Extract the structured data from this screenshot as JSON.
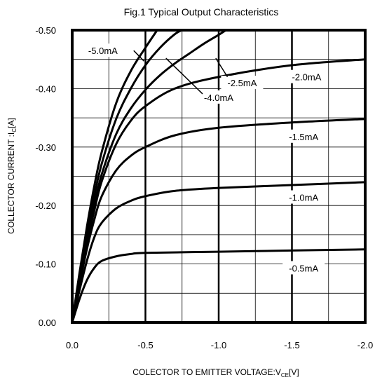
{
  "chart_data": {
    "type": "line",
    "title": "Fig.1 Typical Output Characteristics",
    "xlabel": {
      "main": "COLECTOR TO EMITTER VOLTAGE:V",
      "sub": "CE",
      "tail": "[V]"
    },
    "ylabel": {
      "main": "COLLECTOR CURRENT :I",
      "sub": "C",
      "tail": "[A]"
    },
    "xlim": [
      0,
      -2.0
    ],
    "ylim": [
      0,
      -0.5
    ],
    "x_ticks": [
      "0.0",
      "-0.5",
      "-1.0",
      "-1.5",
      "-2.0"
    ],
    "y_ticks": [
      "0.00",
      "-0.10",
      "-0.20",
      "-0.30",
      "-0.40",
      "-0.50"
    ],
    "grid": true,
    "series": [
      {
        "name": "-0.5mA",
        "x": [
          0,
          -0.05,
          -0.1,
          -0.15,
          -0.2,
          -0.3,
          -0.4,
          -0.5,
          -1.0,
          -1.5,
          -2.0
        ],
        "values": [
          0,
          -0.04,
          -0.072,
          -0.093,
          -0.105,
          -0.113,
          -0.117,
          -0.119,
          -0.121,
          -0.123,
          -0.125
        ]
      },
      {
        "name": "-1.0mA",
        "x": [
          0,
          -0.05,
          -0.1,
          -0.15,
          -0.2,
          -0.3,
          -0.4,
          -0.5,
          -0.7,
          -1.0,
          -1.5,
          -2.0
        ],
        "values": [
          0,
          -0.055,
          -0.105,
          -0.145,
          -0.17,
          -0.195,
          -0.208,
          -0.216,
          -0.225,
          -0.23,
          -0.235,
          -0.24
        ]
      },
      {
        "name": "-1.5mA",
        "x": [
          0,
          -0.05,
          -0.1,
          -0.15,
          -0.2,
          -0.3,
          -0.4,
          -0.5,
          -0.7,
          -1.0,
          -1.5,
          -2.0
        ],
        "values": [
          0,
          -0.065,
          -0.125,
          -0.175,
          -0.215,
          -0.26,
          -0.285,
          -0.3,
          -0.32,
          -0.333,
          -0.342,
          -0.348
        ]
      },
      {
        "name": "-2.0mA",
        "x": [
          0,
          -0.05,
          -0.1,
          -0.15,
          -0.2,
          -0.3,
          -0.4,
          -0.5,
          -0.7,
          -1.0,
          -1.5,
          -2.0
        ],
        "values": [
          0,
          -0.07,
          -0.135,
          -0.19,
          -0.24,
          -0.305,
          -0.345,
          -0.37,
          -0.4,
          -0.42,
          -0.44,
          -0.45
        ]
      },
      {
        "name": "-2.5mA",
        "x": [
          0,
          -0.05,
          -0.1,
          -0.15,
          -0.2,
          -0.3,
          -0.4,
          -0.5,
          -0.6,
          -0.7,
          -0.8,
          -0.9,
          -1.0,
          -1.05
        ],
        "values": [
          0,
          -0.075,
          -0.142,
          -0.2,
          -0.252,
          -0.322,
          -0.366,
          -0.398,
          -0.423,
          -0.443,
          -0.46,
          -0.477,
          -0.492,
          -0.5
        ]
      },
      {
        "name": "-4.0mA",
        "x": [
          0,
          -0.05,
          -0.1,
          -0.15,
          -0.2,
          -0.3,
          -0.4,
          -0.5,
          -0.6,
          -0.7,
          -0.75
        ],
        "values": [
          0,
          -0.08,
          -0.152,
          -0.215,
          -0.27,
          -0.348,
          -0.4,
          -0.44,
          -0.47,
          -0.493,
          -0.5
        ]
      },
      {
        "name": "-5.0mA",
        "x": [
          0,
          -0.05,
          -0.1,
          -0.15,
          -0.2,
          -0.3,
          -0.4,
          -0.5,
          -0.58
        ],
        "values": [
          0,
          -0.085,
          -0.163,
          -0.232,
          -0.29,
          -0.375,
          -0.43,
          -0.47,
          -0.5
        ]
      }
    ],
    "annotations": [
      {
        "label": "-5.0mA",
        "x": -0.21,
        "y": -0.465
      },
      {
        "label": "-4.0mA",
        "x": -1.0,
        "y": -0.385
      },
      {
        "label": "-2.5mA",
        "x": -1.16,
        "y": -0.41
      },
      {
        "label": "-2.0mA",
        "x": -1.6,
        "y": -0.42
      },
      {
        "label": "-1.5mA",
        "x": -1.58,
        "y": -0.318
      },
      {
        "label": "-1.0mA",
        "x": -1.58,
        "y": -0.214
      },
      {
        "label": "-0.5mA",
        "x": -1.58,
        "y": -0.093
      }
    ]
  }
}
